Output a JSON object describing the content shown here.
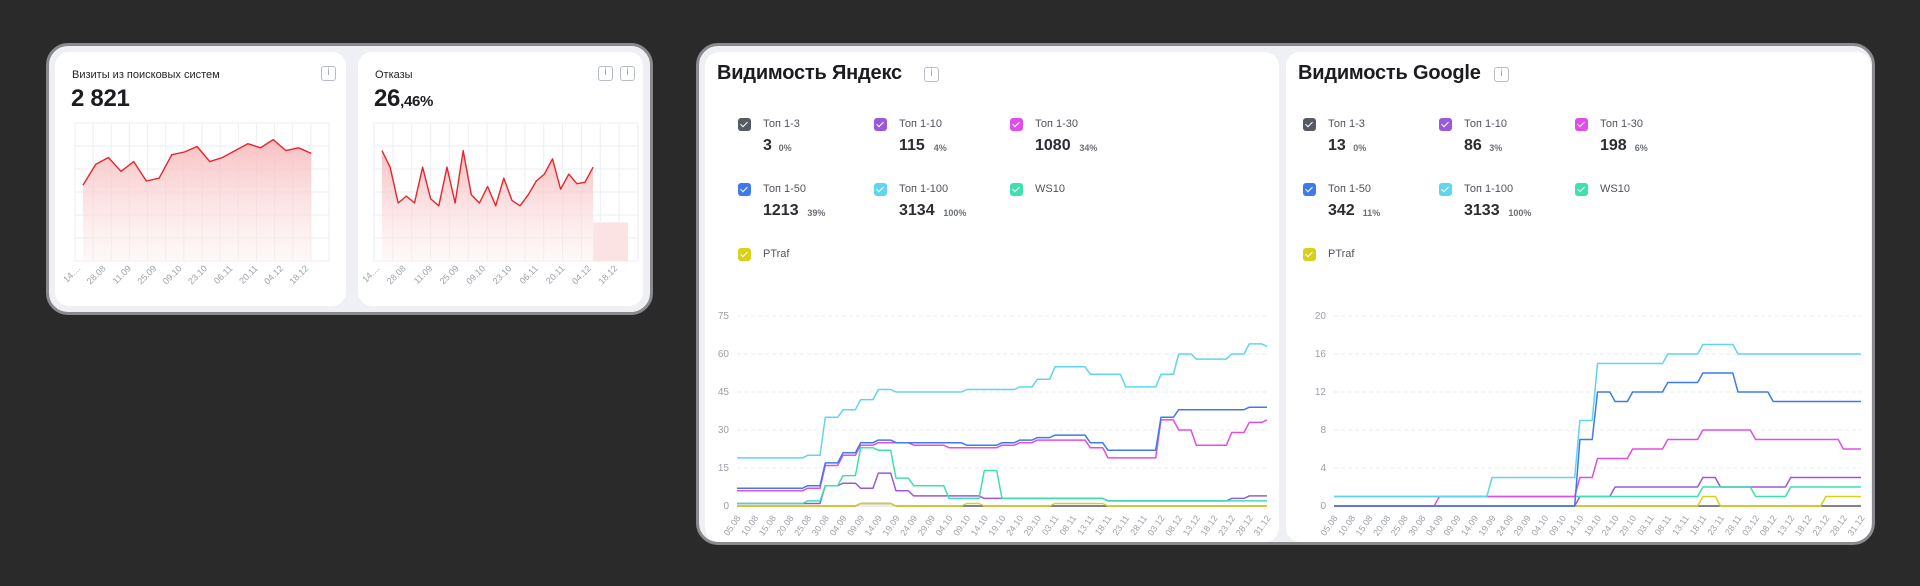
{
  "top_left": {
    "visits": {
      "title": "Визиты из поисковых систем",
      "value": "2 821",
      "info_icon": "info-icon"
    },
    "bounce": {
      "title": "Отказы",
      "value_main": "26",
      "value_suffix": ",46%",
      "info_icon": "info-icon"
    }
  },
  "yandex": {
    "title": "Видимость Яндекс",
    "legend": [
      {
        "label": "Топ 1-3",
        "value": "3",
        "pct": "0%",
        "color": "#555a63"
      },
      {
        "label": "Топ 1-10",
        "value": "115",
        "pct": "4%",
        "color": "#9b59d9"
      },
      {
        "label": "Топ 1-30",
        "value": "1080",
        "pct": "34%",
        "color": "#e04ee8"
      },
      {
        "label": "Топ 1-50",
        "value": "1213",
        "pct": "39%",
        "color": "#3f7be8"
      },
      {
        "label": "Топ 1-100",
        "value": "3134",
        "pct": "100%",
        "color": "#5fd6ee"
      },
      {
        "label": "WS10",
        "value": "",
        "pct": "",
        "color": "#3ee0b0"
      },
      {
        "label": "PTraf",
        "value": "",
        "pct": "",
        "color": "#d8d11a"
      }
    ]
  },
  "google": {
    "title": "Видимость Google",
    "legend": [
      {
        "label": "Топ 1-3",
        "value": "13",
        "pct": "0%",
        "color": "#555a63"
      },
      {
        "label": "Топ 1-10",
        "value": "86",
        "pct": "3%",
        "color": "#9b59d9"
      },
      {
        "label": "Топ 1-30",
        "value": "198",
        "pct": "6%",
        "color": "#e04ee8"
      },
      {
        "label": "Топ 1-50",
        "value": "342",
        "pct": "11%",
        "color": "#3f7be8"
      },
      {
        "label": "Топ 1-100",
        "value": "3133",
        "pct": "100%",
        "color": "#5fd6ee"
      },
      {
        "label": "WS10",
        "value": "",
        "pct": "",
        "color": "#3ee0b0"
      },
      {
        "label": "PTraf",
        "value": "",
        "pct": "",
        "color": "#d8d11a"
      }
    ]
  },
  "chart_data": [
    {
      "id": "visits",
      "type": "area",
      "color": "#e8242b",
      "x_ticks": [
        "14....",
        "28.08",
        "11.09",
        "25.09",
        "09.10",
        "23.10",
        "06.11",
        "20.11",
        "04.12",
        "18.12"
      ],
      "values": [
        55,
        70,
        75,
        65,
        72,
        58,
        60,
        77,
        79,
        83,
        72,
        75,
        80,
        85,
        82,
        88,
        80,
        82,
        78
      ],
      "ylim": [
        0,
        100
      ]
    },
    {
      "id": "bounce",
      "type": "area",
      "color": "#e8242b",
      "x_ticks": [
        "14....",
        "28.08",
        "11.09",
        "25.09",
        "09.10",
        "23.10",
        "06.11",
        "20.11",
        "04.12",
        "18.12"
      ],
      "values": [
        80,
        68,
        42,
        47,
        42,
        68,
        45,
        40,
        68,
        42,
        80,
        48,
        42,
        54,
        40,
        60,
        44,
        40,
        48,
        58,
        63,
        74,
        52,
        63,
        56,
        57,
        68
      ],
      "tail_values": [
        28,
        28
      ],
      "ylim": [
        0,
        100
      ]
    },
    {
      "id": "yandex",
      "type": "line",
      "x_ticks": [
        "05.08",
        "10.08",
        "15.08",
        "20.08",
        "25.08",
        "30.08",
        "04.09",
        "09.09",
        "14.09",
        "19.09",
        "24.09",
        "29.09",
        "04.10",
        "09.10",
        "14.10",
        "19.10",
        "24.10",
        "29.10",
        "03.11",
        "08.11",
        "13.11",
        "18.11",
        "23.11",
        "28.11",
        "03.12",
        "08.12",
        "13.12",
        "18.12",
        "23.12",
        "28.12",
        "31.12"
      ],
      "y_ticks": [
        0,
        15,
        30,
        45,
        60,
        75
      ],
      "ylim": [
        0,
        75
      ],
      "series": [
        {
          "color": "#5fd6ee",
          "values": [
            19,
            19,
            19,
            19,
            20,
            35,
            38,
            42,
            46,
            45,
            45,
            45,
            45,
            46,
            46,
            46,
            47,
            50,
            55,
            55,
            52,
            52,
            47,
            47,
            52,
            60,
            58,
            58,
            60,
            64,
            63
          ]
        },
        {
          "color": "#3f7be8",
          "values": [
            7,
            7,
            7,
            7,
            8,
            17,
            21,
            25,
            26,
            25,
            25,
            25,
            25,
            24,
            24,
            25,
            26,
            27,
            28,
            28,
            25,
            22,
            22,
            22,
            35,
            38,
            38,
            38,
            38,
            39,
            39
          ]
        },
        {
          "color": "#e04ee8",
          "values": [
            6,
            6,
            6,
            6,
            7,
            16,
            20,
            24,
            25,
            25,
            24,
            24,
            23,
            23,
            23,
            24,
            25,
            26,
            26,
            26,
            23,
            19,
            19,
            19,
            34,
            30,
            24,
            24,
            29,
            33,
            34
          ]
        },
        {
          "color": "#3ee0b0",
          "values": [
            1,
            1,
            1,
            1,
            2,
            8,
            12,
            23,
            22,
            11,
            8,
            8,
            3,
            3,
            14,
            3,
            3,
            3,
            3,
            3,
            3,
            2,
            2,
            2,
            2,
            2,
            2,
            2,
            2,
            2,
            2
          ]
        },
        {
          "color": "#9b59d9",
          "values": [
            1,
            1,
            1,
            1,
            1,
            8,
            9,
            7,
            13,
            6,
            4,
            4,
            4,
            4,
            3,
            3,
            3,
            3,
            3,
            3,
            3,
            2,
            2,
            2,
            2,
            2,
            2,
            2,
            3,
            4,
            4
          ]
        },
        {
          "color": "#d8d11a",
          "values": [
            0,
            0,
            0,
            0,
            0,
            0,
            0,
            1,
            1,
            0,
            0,
            0,
            0,
            1,
            0,
            0,
            0,
            0,
            1,
            1,
            1,
            0,
            0,
            0,
            0,
            0,
            0,
            0,
            0,
            0,
            0
          ]
        },
        {
          "color": "#555a63",
          "values": [
            0,
            0,
            0,
            0,
            0,
            0,
            0,
            1,
            1,
            0,
            0,
            0,
            0,
            0,
            0,
            0,
            0,
            0,
            0,
            0,
            0,
            0,
            0,
            0,
            0,
            0,
            0,
            0,
            0,
            0,
            0
          ]
        }
      ]
    },
    {
      "id": "google",
      "type": "line",
      "x_ticks": [
        "05.08",
        "10.08",
        "15.08",
        "20.08",
        "25.08",
        "30.08",
        "04.09",
        "09.09",
        "14.09",
        "19.09",
        "24.09",
        "29.09",
        "04.10",
        "09.10",
        "14.10",
        "19.10",
        "24.10",
        "29.10",
        "03.11",
        "08.11",
        "13.11",
        "18.11",
        "23.11",
        "28.11",
        "03.12",
        "08.12",
        "13.12",
        "18.12",
        "23.12",
        "28.12",
        "31.12"
      ],
      "y_ticks": [
        0,
        4,
        8,
        12,
        16,
        20
      ],
      "ylim": [
        0,
        20
      ],
      "series": [
        {
          "color": "#5fd6ee",
          "values": [
            1,
            1,
            1,
            1,
            1,
            1,
            1,
            1,
            1,
            3,
            3,
            3,
            3,
            3,
            9,
            15,
            15,
            15,
            15,
            16,
            16,
            17,
            17,
            16,
            16,
            16,
            16,
            16,
            16,
            16,
            16
          ]
        },
        {
          "color": "#3f7be8",
          "values": [
            0,
            0,
            0,
            0,
            0,
            0,
            0,
            0,
            0,
            0,
            0,
            0,
            0,
            0,
            7,
            12,
            11,
            12,
            12,
            13,
            13,
            14,
            14,
            12,
            12,
            11,
            11,
            11,
            11,
            11,
            11
          ]
        },
        {
          "color": "#e04ee8",
          "values": [
            0,
            0,
            0,
            0,
            0,
            0,
            1,
            1,
            1,
            1,
            1,
            1,
            1,
            1,
            3,
            5,
            5,
            6,
            6,
            7,
            7,
            8,
            8,
            8,
            7,
            7,
            7,
            7,
            7,
            6,
            6
          ]
        },
        {
          "color": "#3ee0b0",
          "values": [
            1,
            1,
            1,
            1,
            1,
            1,
            1,
            1,
            1,
            1,
            1,
            1,
            1,
            1,
            1,
            1,
            1,
            1,
            1,
            1,
            1,
            2,
            2,
            2,
            1,
            1,
            2,
            2,
            2,
            2,
            2
          ]
        },
        {
          "color": "#9b59d9",
          "values": [
            0,
            0,
            0,
            0,
            0,
            0,
            0,
            0,
            0,
            0,
            0,
            0,
            0,
            0,
            1,
            1,
            2,
            2,
            2,
            2,
            2,
            3,
            2,
            2,
            2,
            2,
            3,
            3,
            3,
            3,
            3
          ]
        },
        {
          "color": "#d8d11a",
          "values": [
            0,
            0,
            0,
            0,
            0,
            0,
            0,
            0,
            0,
            0,
            0,
            0,
            0,
            0,
            0,
            0,
            0,
            0,
            0,
            0,
            0,
            1,
            0,
            0,
            0,
            0,
            0,
            0,
            1,
            1,
            1
          ]
        },
        {
          "color": "#555a63",
          "values": [
            0,
            0,
            0,
            0,
            0,
            0,
            0,
            0,
            0,
            0,
            0,
            0,
            0,
            0,
            0,
            0,
            0,
            0,
            0,
            0,
            0,
            0,
            0,
            0,
            0,
            0,
            0,
            0,
            0,
            0,
            0
          ]
        }
      ]
    }
  ]
}
